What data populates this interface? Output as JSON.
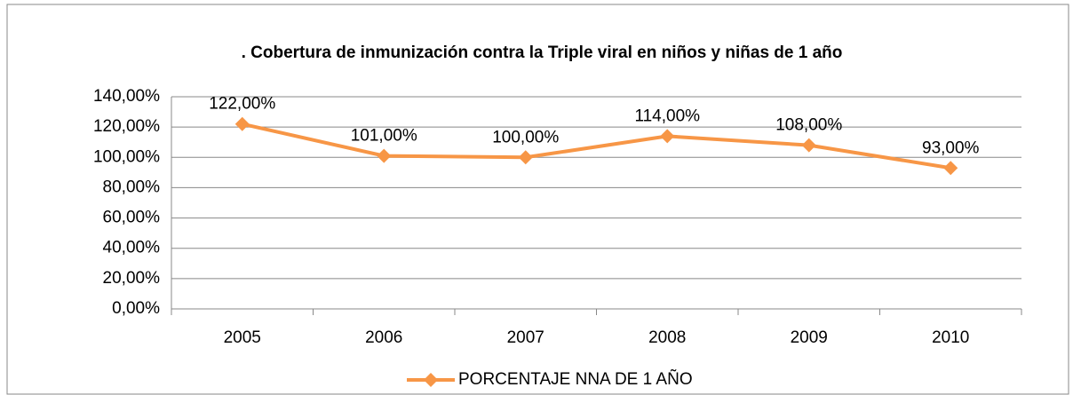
{
  "chart_data": {
    "type": "line",
    "title": ". Cobertura de inmunización contra la Triple viral en niños y niñas de 1 año",
    "categories": [
      "2005",
      "2006",
      "2007",
      "2008",
      "2009",
      "2010"
    ],
    "series": [
      {
        "name": "PORCENTAJE NNA DE 1 AÑO",
        "color": "#f79646",
        "values": [
          122,
          101,
          100,
          114,
          108,
          93
        ],
        "value_labels": [
          "122,00%",
          "101,00%",
          "100,00%",
          "114,00%",
          "108,00%",
          "93,00%"
        ]
      }
    ],
    "ylim": [
      0,
      140
    ],
    "yticks": [
      {
        "value": 0,
        "label": "0,00%"
      },
      {
        "value": 20,
        "label": "20,00%"
      },
      {
        "value": 40,
        "label": "40,00%"
      },
      {
        "value": 60,
        "label": "60,00%"
      },
      {
        "value": 80,
        "label": "80,00%"
      },
      {
        "value": 100,
        "label": "100,00%"
      },
      {
        "value": 120,
        "label": "120,00%"
      },
      {
        "value": 140,
        "label": "140,00%"
      }
    ],
    "grid": true,
    "legend": "bottom"
  }
}
